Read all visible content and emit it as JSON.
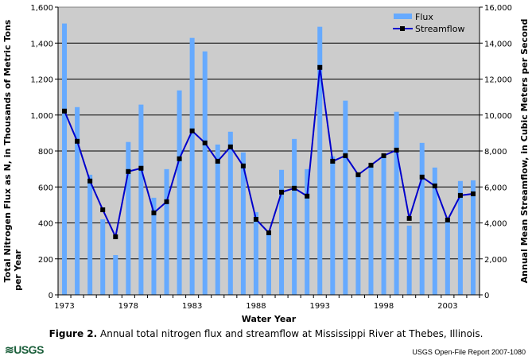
{
  "chart_data": {
    "type": "bar",
    "title": "",
    "xlabel": "Water Year",
    "ylabel": "Total Nitrogen Flux as N, in Thousands of Metric Tons per Year",
    "ylabel_line1": "Total Nitrogen Flux as N, in Thousands of Metric Tons",
    "ylabel_line2": "per Year",
    "y2label": "Annual Mean Streamflow, in Cubic Meters per Second",
    "ylim": [
      0,
      1600
    ],
    "y2lim": [
      0,
      16000
    ],
    "yticks": [
      "0",
      "200",
      "400",
      "600",
      "800",
      "1,000",
      "1,200",
      "1,400",
      "1,600"
    ],
    "y2ticks": [
      "0",
      "2,000",
      "4,000",
      "6,000",
      "8,000",
      "10,000",
      "12,000",
      "14,000",
      "16,000"
    ],
    "xtick_labels": [
      "1973",
      "1978",
      "1983",
      "1988",
      "1993",
      "1998",
      "2003"
    ],
    "grid": true,
    "legend_position": "top-right",
    "categories": [
      1973,
      1974,
      1975,
      1976,
      1977,
      1978,
      1979,
      1980,
      1981,
      1982,
      1983,
      1984,
      1985,
      1986,
      1987,
      1988,
      1989,
      1990,
      1991,
      1992,
      1993,
      1994,
      1995,
      1996,
      1997,
      1998,
      1999,
      2000,
      2001,
      2002,
      2003,
      2004,
      2005
    ],
    "series": [
      {
        "name": "Flux",
        "type": "bar",
        "axis": "left",
        "color": "#66aaff",
        "values": [
          1509,
          1044,
          668,
          420,
          221,
          850,
          1058,
          540,
          699,
          1137,
          1429,
          1354,
          836,
          907,
          792,
          460,
          345,
          695,
          867,
          699,
          1491,
          770,
          1080,
          677,
          726,
          770,
          1018,
          385,
          845,
          708,
          416,
          633,
          637
        ]
      },
      {
        "name": "Streamflow",
        "type": "line",
        "axis": "right",
        "color": "#0000cc",
        "marker_color": "#000000",
        "values": [
          10220,
          8540,
          6330,
          4730,
          3230,
          6860,
          7040,
          4560,
          5180,
          7570,
          9120,
          8450,
          7430,
          8230,
          7170,
          4200,
          3450,
          5710,
          5930,
          5490,
          12650,
          7430,
          7740,
          6680,
          7210,
          7740,
          8050,
          4250,
          6550,
          6060,
          4160,
          5530,
          5620
        ]
      }
    ]
  },
  "caption": {
    "label": "Figure 2.",
    "text": " Annual total nitrogen flux and streamflow at Mississippi River at Thebes, Illinois."
  },
  "footer": {
    "logo": "≋USGS",
    "report": "USGS Open-File Report 2007-1080"
  },
  "colors": {
    "plot_bg": "#cccccc",
    "grid": "#000000"
  }
}
